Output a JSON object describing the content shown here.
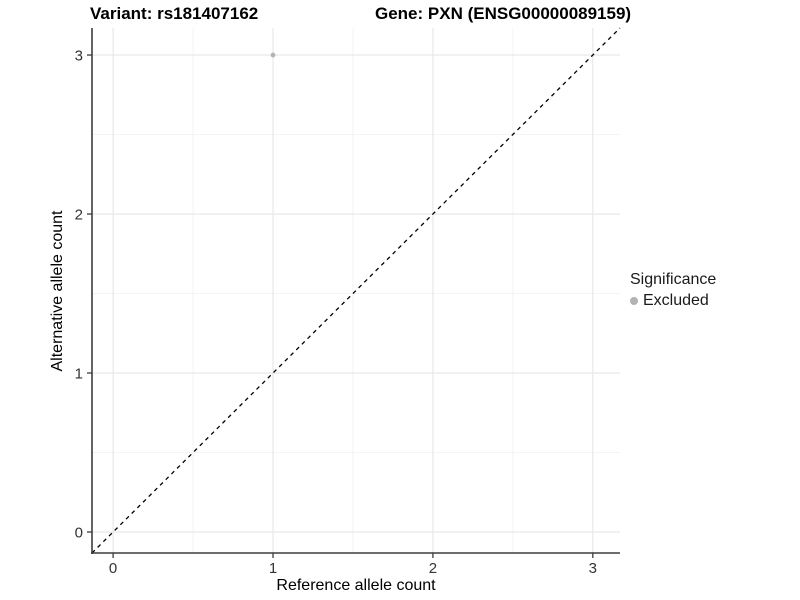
{
  "chart_data": {
    "type": "scatter",
    "title_left": "Variant: rs181407162",
    "title_right": "Gene: PXN (ENSG00000089159)",
    "xlabel": "Reference allele count",
    "ylabel": "Alternative allele count",
    "xlim": [
      -0.132,
      3.17
    ],
    "ylim": [
      -0.132,
      3.17
    ],
    "x_ticks": [
      0,
      1,
      2,
      3
    ],
    "y_ticks": [
      0,
      1,
      2,
      3
    ],
    "x_minor_ticks": [
      0.5,
      1.5,
      2.5
    ],
    "y_minor_ticks": [
      0.5,
      1.5,
      2.5
    ],
    "grid": "major-and-minor",
    "points": [
      {
        "x": 1,
        "y": 3,
        "significance": "Excluded"
      }
    ],
    "identity_line": {
      "slope": 1,
      "intercept": 0,
      "style": "dashed",
      "color": "#000000"
    },
    "legend": {
      "title": "Significance",
      "position": "right",
      "items": [
        {
          "label": "Excluded",
          "color": "#b3b3b3"
        }
      ]
    },
    "colors": {
      "background": "#ffffff",
      "grid_major": "#e6e6e6",
      "grid_minor": "#f2f2f2",
      "axis_line": "#3d3d3d",
      "tick_text": "#333333",
      "point": "#b3b3b3"
    }
  }
}
